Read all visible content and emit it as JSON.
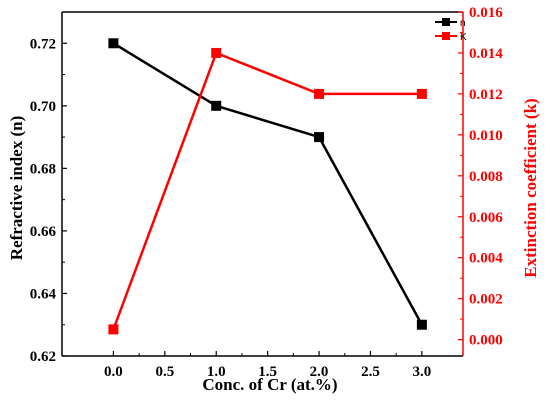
{
  "chart_data": {
    "type": "line",
    "x": [
      0.0,
      1.0,
      2.0,
      3.0
    ],
    "xlabel": "Conc. of Cr (at.%)",
    "xlim": [
      -0.5,
      3.4
    ],
    "xticks": [
      "0.0",
      "0.5",
      "1.0",
      "1.5",
      "2.0",
      "2.5",
      "3.0"
    ],
    "y_left": {
      "label": "Refractive index (n)",
      "lim": [
        0.62,
        0.73
      ],
      "ticks": [
        "0.62",
        "0.64",
        "0.66",
        "0.68",
        "0.70",
        "0.72"
      ],
      "color": "#000000"
    },
    "y_right": {
      "label": "Extinction coefficient (k)",
      "lim": [
        -0.0008,
        0.016
      ],
      "ticks": [
        "0.000",
        "0.002",
        "0.004",
        "0.006",
        "0.008",
        "0.010",
        "0.012",
        "0.014",
        "0.016"
      ],
      "color": "#ff0000"
    },
    "series": [
      {
        "name": "n",
        "axis": "left",
        "color": "#000000",
        "marker": "square",
        "values": [
          0.72,
          0.7,
          0.69,
          0.63
        ]
      },
      {
        "name": "K",
        "axis": "right",
        "color": "#ff0000",
        "marker": "square",
        "values": [
          0.0005,
          0.014,
          0.012,
          0.012
        ]
      }
    ],
    "legend": "top-right",
    "grid": false
  }
}
